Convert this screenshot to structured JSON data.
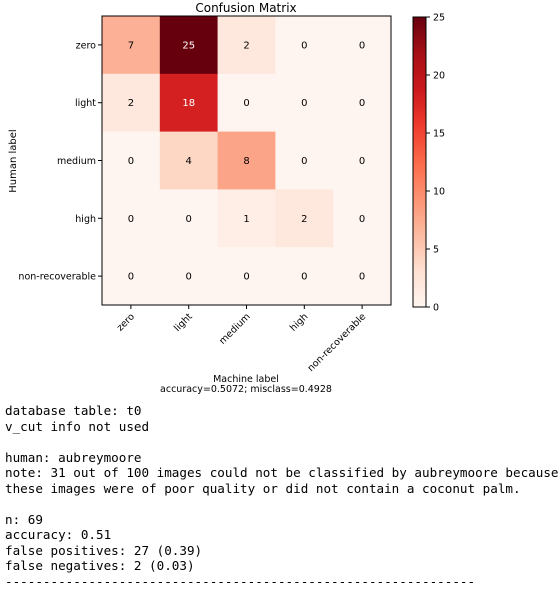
{
  "chart_data": {
    "type": "heatmap",
    "title": "Confusion Matrix",
    "xlabel": "Machine label",
    "xlabel_sub": "accuracy=0.5072; misclass=0.4928",
    "ylabel": "Human label",
    "x_categories": [
      "zero",
      "light",
      "medium",
      "high",
      "non-recoverable"
    ],
    "y_categories": [
      "zero",
      "light",
      "medium",
      "high",
      "non-recoverable"
    ],
    "matrix": [
      [
        7,
        25,
        2,
        0,
        0
      ],
      [
        2,
        18,
        0,
        0,
        0
      ],
      [
        0,
        4,
        8,
        0,
        0
      ],
      [
        0,
        0,
        1,
        2,
        0
      ],
      [
        0,
        0,
        0,
        0,
        0
      ]
    ],
    "colormap": "Reds",
    "color_min": "#fff5f0",
    "color_max": "#67000d",
    "vmin": 0,
    "vmax": 25,
    "colorbar_ticks": [
      "0",
      "5",
      "10",
      "15",
      "20",
      "25"
    ],
    "grid": false
  },
  "output": {
    "lines": [
      "database table: t0",
      "v_cut info not used",
      "",
      "human: aubreymoore",
      "note: 31 out of 100 images could not be classified by aubreymoore because",
      "these images were of poor quality or did not contain a coconut palm.",
      "",
      "n: 69",
      "accuracy: 0.51",
      "false positives: 27 (0.39)",
      "false negatives: 2 (0.03)",
      "--------------------------------------------------------------"
    ]
  }
}
